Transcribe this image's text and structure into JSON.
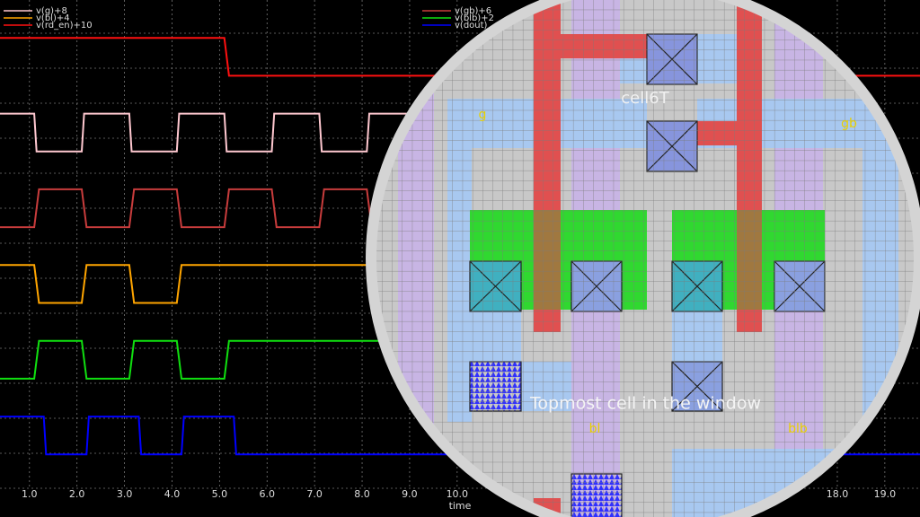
{
  "chart_data": {
    "type": "line",
    "xlabel": "time",
    "xlim": [
      0.38,
      19.74
    ],
    "ylim": [
      -0.8,
      12
    ],
    "xticks": [
      {
        "value": 1,
        "label": "1.0"
      },
      {
        "value": 2,
        "label": "2.0"
      },
      {
        "value": 3,
        "label": "3.0"
      },
      {
        "value": 4,
        "label": "4.0"
      },
      {
        "value": 5,
        "label": "5.0"
      },
      {
        "value": 6,
        "label": "6.0"
      },
      {
        "value": 7,
        "label": "7.0"
      },
      {
        "value": 8,
        "label": "8.0"
      },
      {
        "value": 9,
        "label": "9.0"
      },
      {
        "value": 10,
        "label": "10.0"
      },
      {
        "value": 18,
        "label": "18.0"
      },
      {
        "value": 19,
        "label": "19.0"
      }
    ],
    "grid": true,
    "series": [
      {
        "name": "v(g)+8",
        "color": "#ffc8d0",
        "x": [
          0.38,
          1.1,
          1.15,
          2.1,
          2.15,
          3.1,
          3.15,
          4.1,
          4.15,
          5.1,
          5.15,
          6.1,
          6.15,
          7.1,
          7.15,
          8.1,
          8.15,
          9.0
        ],
        "values": [
          9,
          9,
          8,
          8,
          9,
          9,
          8,
          8,
          9,
          9,
          8,
          8,
          9,
          9,
          8,
          8,
          9,
          9
        ]
      },
      {
        "name": "v(bl)+4",
        "color": "#ffa500",
        "x": [
          0.38,
          1.1,
          1.2,
          2.1,
          2.2,
          3.1,
          3.2,
          4.1,
          4.2,
          9.0
        ],
        "values": [
          5,
          5,
          4,
          4,
          5,
          5,
          4,
          4,
          5,
          5
        ]
      },
      {
        "name": "v(rd_en)+10",
        "color": "#ff1010",
        "x": [
          0.38,
          5.1,
          5.2,
          19.74
        ],
        "values": [
          11,
          11,
          10,
          10
        ]
      },
      {
        "name": "v(gb)+6",
        "color": "#c83c3c",
        "x": [
          0.38,
          1.1,
          1.2,
          2.1,
          2.2,
          3.1,
          3.2,
          4.1,
          4.2,
          5.1,
          5.2,
          6.1,
          6.2,
          7.1,
          7.2,
          8.1,
          8.2,
          9.0
        ],
        "values": [
          6,
          6,
          7,
          7,
          6,
          6,
          7,
          7,
          6,
          6,
          7,
          7,
          6,
          6,
          7,
          7,
          6,
          6
        ]
      },
      {
        "name": "v(blb)+2",
        "color": "#10e010",
        "x": [
          0.38,
          1.1,
          1.2,
          2.1,
          2.2,
          3.1,
          3.2,
          4.1,
          4.2,
          5.1,
          5.2,
          9.0
        ],
        "values": [
          2,
          2,
          3,
          3,
          2,
          2,
          3,
          3,
          2,
          2,
          3,
          3
        ]
      },
      {
        "name": "v(dout)",
        "color": "#0000ff",
        "x": [
          0.38,
          1.3,
          1.35,
          2.2,
          2.25,
          3.3,
          3.35,
          4.2,
          4.25,
          5.3,
          5.35,
          19.74
        ],
        "values": [
          1,
          1,
          0,
          0,
          1,
          1,
          0,
          0,
          1,
          1,
          0,
          0
        ]
      }
    ]
  },
  "layout": {
    "title": "cell6T",
    "labels": [
      "g",
      "gb",
      "bl",
      "blb"
    ],
    "caption": "Topmost cell in the window"
  }
}
